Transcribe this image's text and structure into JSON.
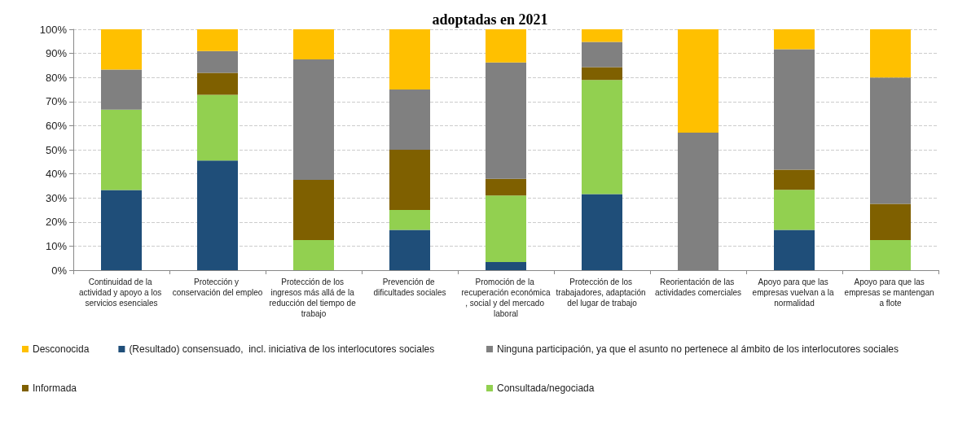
{
  "chart_data": {
    "type": "bar",
    "title": "adoptadas en 2021",
    "stacked": true,
    "grid": "y",
    "legend": "bottom",
    "categories": [
      "Continuidad de la actividad y apoyo a los servicios esenciales",
      "Protección y conservación del empleo",
      "Protección de los ingresos más allá de la reducción del tiempo de trabajo",
      "Prevención de dificultades sociales",
      "Promoción de la recuperación económica, social y del mercado laboral",
      "Protección de los trabajadores, adaptación del lugar de trabajo",
      "Reorientación de las actividades comerciales",
      "Apoyo para que las empresas vuelvan a la normalidad",
      "Apoyo para que las empresas se mantengan a flote"
    ],
    "ylim": [
      0,
      100
    ],
    "yticks": [
      {
        "value": 0,
        "label": "0%"
      },
      {
        "value": 10,
        "label": "10%"
      },
      {
        "value": 20,
        "label": "20%"
      },
      {
        "value": 30,
        "label": "30%"
      },
      {
        "value": 40,
        "label": "40%"
      },
      {
        "value": 50,
        "label": "50%"
      },
      {
        "value": 60,
        "label": "60%"
      },
      {
        "value": 70,
        "label": "70%"
      },
      {
        "value": 80,
        "label": "80%"
      },
      {
        "value": 90,
        "label": "90%"
      },
      {
        "value": 100,
        "label": "100%"
      }
    ],
    "series": [
      {
        "name": "(Resultado) consensuado,  incl. iniciativa de los interlocutores sociales",
        "color": "#1f4e79",
        "values": [
          33.3,
          45.5,
          0,
          16.7,
          3.4,
          31.6,
          0,
          16.7,
          0
        ]
      },
      {
        "name": "Consultada/negociada",
        "color": "#92d050",
        "values": [
          33.3,
          27.3,
          12.5,
          8.3,
          27.6,
          47.4,
          0,
          16.7,
          12.5
        ]
      },
      {
        "name": "Informada",
        "color": "#7f6000",
        "values": [
          0,
          9.1,
          25,
          25,
          6.9,
          5.3,
          0,
          8.3,
          15
        ]
      },
      {
        "name": "Ninguna participación, ya que el asunto no pertenece al ámbito de los interlocutores sociales",
        "color": "#808080",
        "values": [
          16.7,
          9.1,
          50,
          25,
          48.3,
          10.5,
          57.1,
          50,
          52.5
        ]
      },
      {
        "name": "Desconocida",
        "color": "#ffc000",
        "values": [
          16.7,
          9.1,
          12.5,
          25,
          13.8,
          5.2,
          42.9,
          8.3,
          20
        ]
      }
    ]
  }
}
